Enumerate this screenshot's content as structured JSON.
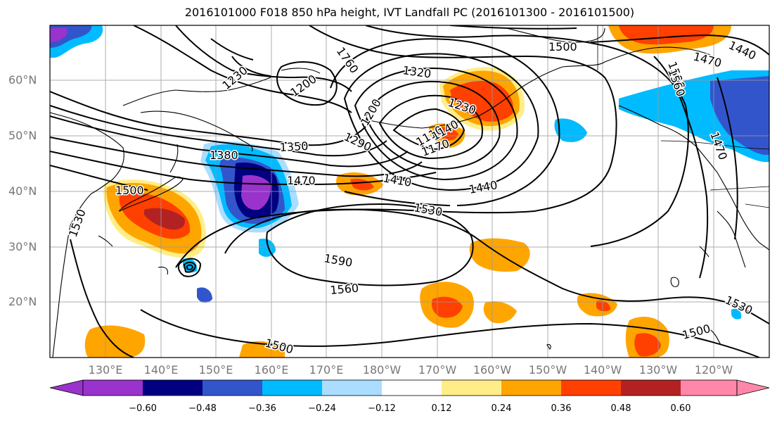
{
  "title": "2016101000 F018 850 hPa height, IVT Landfall PC (2016101300 - 2016101500)",
  "lat_labels": [
    "60°N",
    "50°N",
    "40°N",
    "30°N",
    "20°N"
  ],
  "lon_labels": [
    "130°E",
    "140°E",
    "150°E",
    "160°E",
    "170°E",
    "180°W",
    "170°W",
    "160°W",
    "150°W",
    "140°W",
    "130°W",
    "120°W"
  ],
  "contour_labels": [
    "1500",
    "1440",
    "1470",
    "1230",
    "1200",
    "1760",
    "1320",
    "1500",
    "1560",
    "1230",
    "1200",
    "1110",
    "1140",
    "1170",
    "1290",
    "1350",
    "1380",
    "1470",
    "1410",
    "1440",
    "1530",
    "1500",
    "1530",
    "1590",
    "1560",
    "1500",
    "1530",
    "1500",
    "1470"
  ],
  "colorbar": {
    "colors": [
      "#9933cc",
      "#000080",
      "#3355cc",
      "#00bbff",
      "#aaddff",
      "#ffffff",
      "#ffee88",
      "#ffa500",
      "#ff4000",
      "#b22222",
      "#ff88aa"
    ],
    "tick_labels": [
      "−0.60",
      "−0.48",
      "−0.36",
      "−0.24",
      "−0.12",
      "0.12",
      "0.24",
      "0.36",
      "0.48",
      "0.60"
    ]
  }
}
